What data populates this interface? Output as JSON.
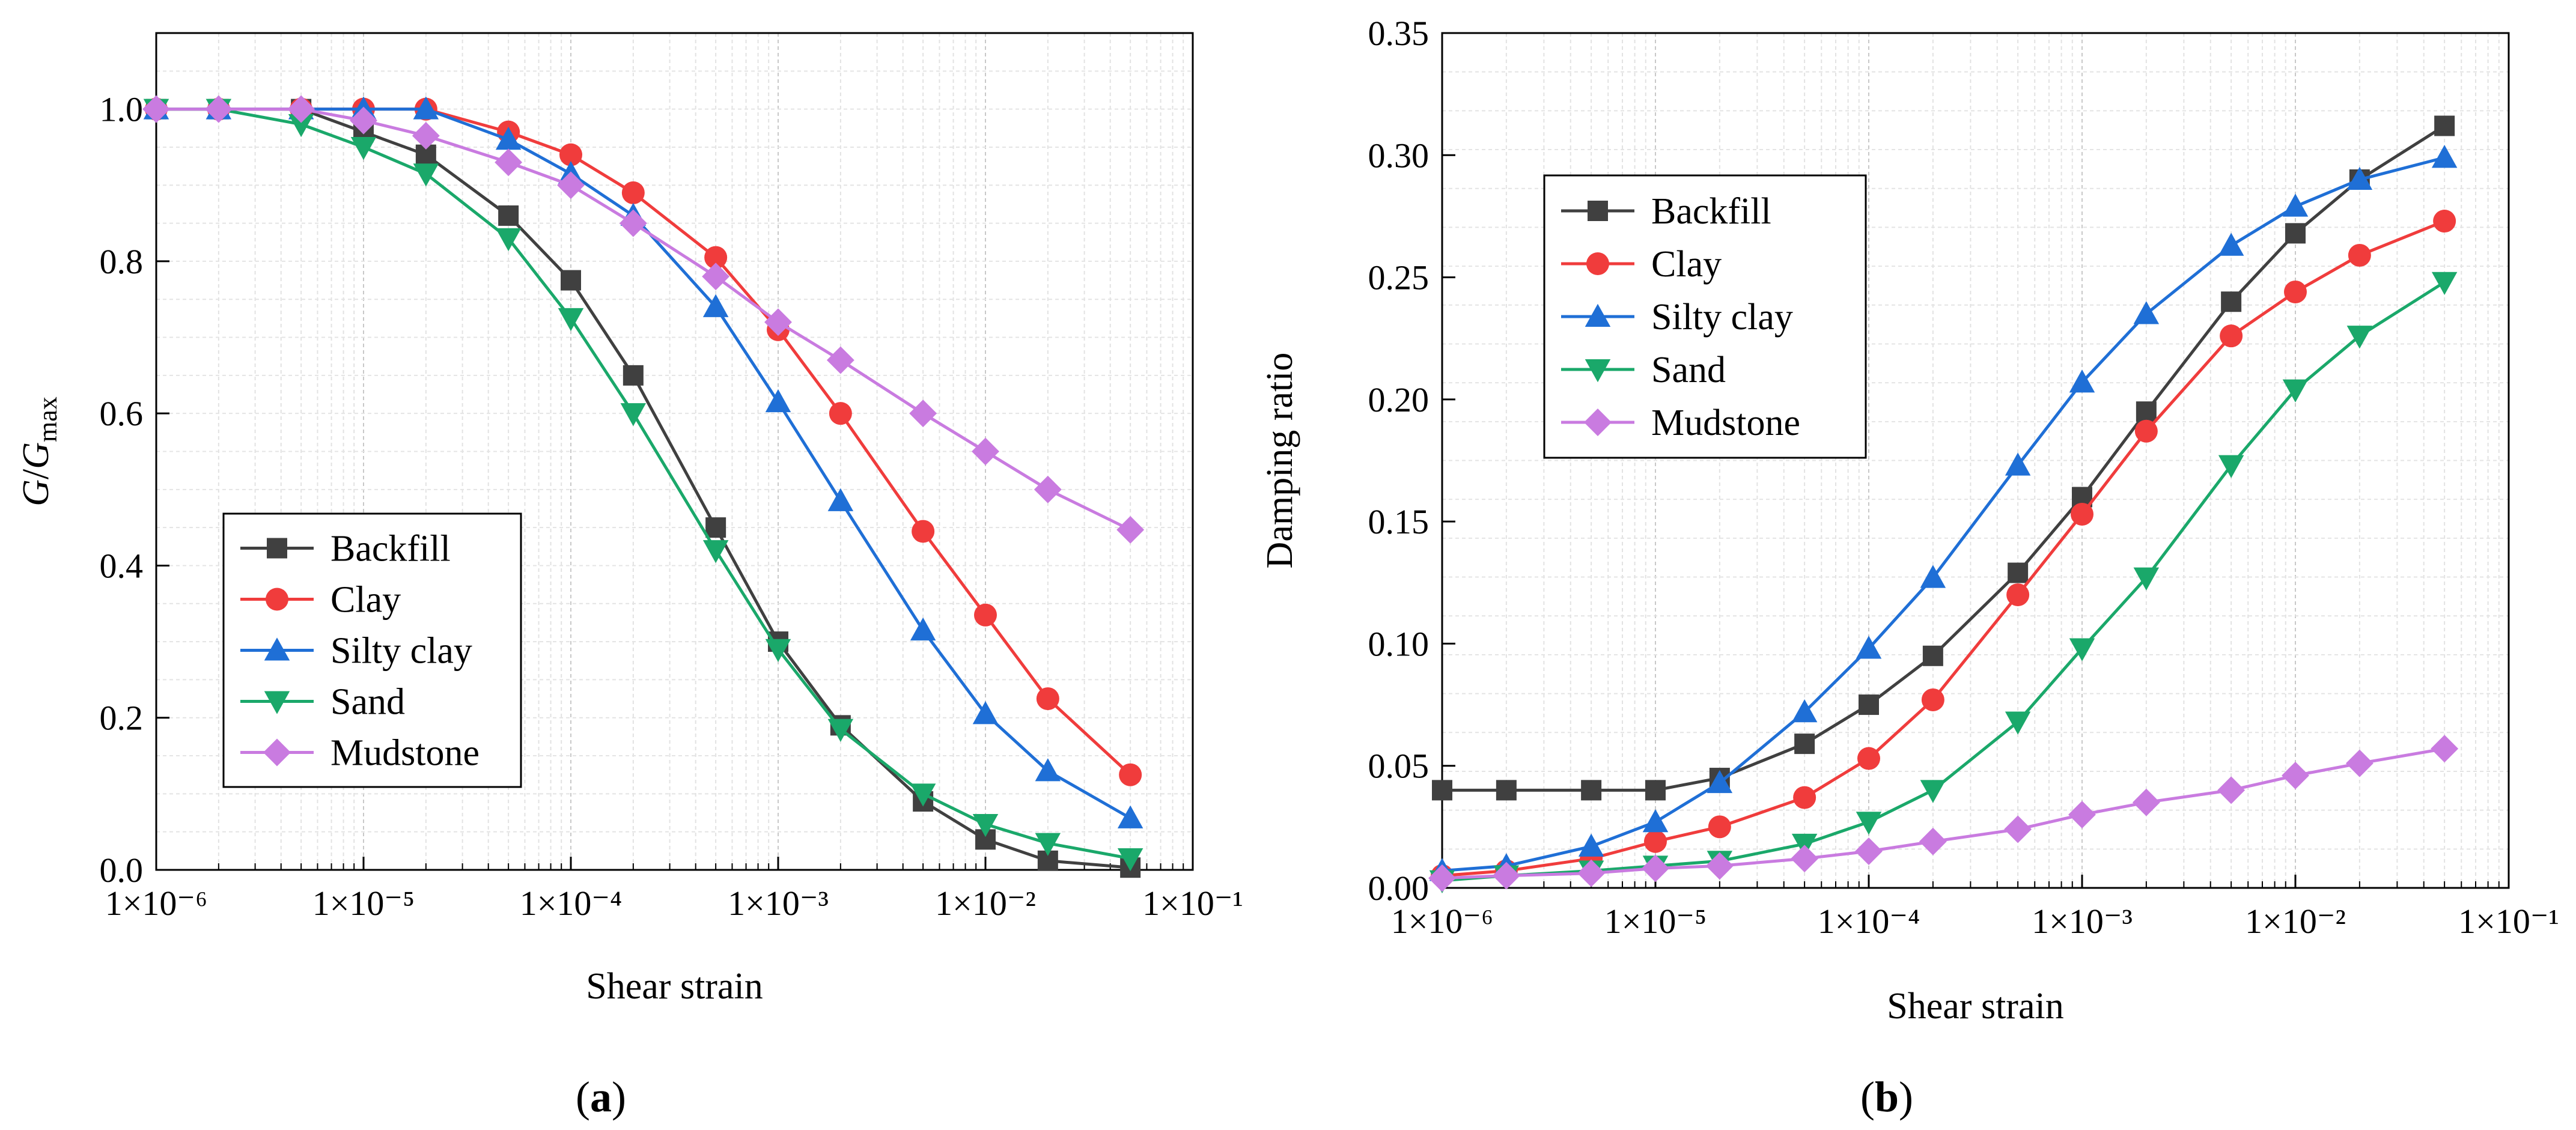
{
  "chart_data": [
    {
      "panel": "a",
      "panel_label": "a",
      "type": "line",
      "x_scale": "log",
      "xlabel": "Shear strain",
      "ylabel": {
        "main": "G",
        "sep": "/",
        "var": "G",
        "sub": "max"
      },
      "xlim": [
        1e-06,
        0.1
      ],
      "ylim": [
        0,
        1.1
      ],
      "x_ticks": [
        1e-06,
        1e-05,
        0.0001,
        0.001,
        0.01,
        0.1
      ],
      "x_tick_labels": [
        "1×10⁻⁶",
        "1×10⁻⁵",
        "1×10⁻⁴",
        "1×10⁻³",
        "1×10⁻²",
        "1×10⁻¹"
      ],
      "y_ticks": [
        0,
        0.2,
        0.4,
        0.6,
        0.8,
        1.0
      ],
      "y_tick_labels": [
        "0.0",
        "0.2",
        "0.4",
        "0.6",
        "0.8",
        "1.0"
      ],
      "grid": true,
      "legend_position": "bottom-left",
      "x": [
        1e-06,
        2e-06,
        5e-06,
        1e-05,
        2e-05,
        5e-05,
        0.0001,
        0.0002,
        0.0005,
        0.001,
        0.002,
        0.005,
        0.01,
        0.02,
        0.05
      ],
      "series": [
        {
          "name": "Backfill",
          "color": "#404040",
          "marker": "square",
          "values": [
            1.0,
            1.0,
            1.0,
            0.97,
            0.94,
            0.86,
            0.775,
            0.65,
            0.45,
            0.3,
            0.19,
            0.09,
            0.04,
            0.012,
            0.003
          ]
        },
        {
          "name": "Clay",
          "color": "#f03c3c",
          "marker": "circle",
          "values": [
            1.0,
            1.0,
            1.0,
            1.0,
            1.0,
            0.97,
            0.94,
            0.89,
            0.805,
            0.71,
            0.6,
            0.445,
            0.335,
            0.225,
            0.125
          ]
        },
        {
          "name": "Silty clay",
          "color": "#1f6fd6",
          "marker": "triangle-up",
          "values": [
            1.0,
            1.0,
            1.0,
            1.0,
            1.0,
            0.96,
            0.915,
            0.86,
            0.74,
            0.615,
            0.485,
            0.315,
            0.205,
            0.13,
            0.068
          ]
        },
        {
          "name": "Sand",
          "color": "#1aa86a",
          "marker": "triangle-down",
          "values": [
            1.0,
            1.0,
            0.98,
            0.95,
            0.915,
            0.83,
            0.725,
            0.6,
            0.42,
            0.29,
            0.185,
            0.1,
            0.06,
            0.035,
            0.015
          ]
        },
        {
          "name": "Mudstone",
          "color": "#c97be0",
          "marker": "diamond",
          "values": [
            1.0,
            1.0,
            1.0,
            0.985,
            0.965,
            0.93,
            0.9,
            0.85,
            0.78,
            0.72,
            0.67,
            0.6,
            0.55,
            0.5,
            0.447
          ]
        }
      ]
    },
    {
      "panel": "b",
      "panel_label": "b",
      "type": "line",
      "x_scale": "log",
      "xlabel": "Shear strain",
      "ylabel": "Damping ratio",
      "xlim": [
        1e-06,
        0.1
      ],
      "ylim": [
        0,
        0.35
      ],
      "x_ticks": [
        1e-06,
        1e-05,
        0.0001,
        0.001,
        0.01,
        0.1
      ],
      "x_tick_labels": [
        "1×10⁻⁶",
        "1×10⁻⁵",
        "1×10⁻⁴",
        "1×10⁻³",
        "1×10⁻²",
        "1×10⁻¹"
      ],
      "y_ticks": [
        0,
        0.05,
        0.1,
        0.15,
        0.2,
        0.25,
        0.3,
        0.35
      ],
      "y_tick_labels": [
        "0.00",
        "0.05",
        "0.10",
        "0.15",
        "0.20",
        "0.25",
        "0.30",
        "0.35"
      ],
      "grid": true,
      "legend_position": "top-left",
      "x": [
        1e-06,
        2e-06,
        5e-06,
        1e-05,
        2e-05,
        5e-05,
        0.0001,
        0.0002,
        0.0005,
        0.001,
        0.002,
        0.005,
        0.01,
        0.02,
        0.05
      ],
      "series": [
        {
          "name": "Backfill",
          "color": "#404040",
          "marker": "square",
          "values": [
            0.04,
            0.04,
            0.04,
            0.04,
            0.045,
            0.059,
            0.075,
            0.095,
            0.129,
            0.16,
            0.195,
            0.24,
            0.268,
            0.29,
            0.312
          ]
        },
        {
          "name": "Clay",
          "color": "#f03c3c",
          "marker": "circle",
          "values": [
            0.005,
            0.007,
            0.012,
            0.019,
            0.025,
            0.037,
            0.053,
            0.077,
            0.12,
            0.153,
            0.187,
            0.226,
            0.244,
            0.259,
            0.273
          ]
        },
        {
          "name": "Silty clay",
          "color": "#1f6fd6",
          "marker": "triangle-up",
          "values": [
            0.007,
            0.009,
            0.017,
            0.027,
            0.043,
            0.072,
            0.098,
            0.127,
            0.173,
            0.207,
            0.235,
            0.263,
            0.279,
            0.29,
            0.299
          ]
        },
        {
          "name": "Sand",
          "color": "#1aa86a",
          "marker": "triangle-down",
          "values": [
            0.003,
            0.005,
            0.007,
            0.009,
            0.011,
            0.018,
            0.027,
            0.04,
            0.068,
            0.098,
            0.127,
            0.173,
            0.204,
            0.226,
            0.248
          ]
        },
        {
          "name": "Mudstone",
          "color": "#c97be0",
          "marker": "diamond",
          "values": [
            0.004,
            0.005,
            0.006,
            0.008,
            0.009,
            0.012,
            0.015,
            0.019,
            0.024,
            0.03,
            0.035,
            0.04,
            0.046,
            0.051,
            0.057
          ]
        }
      ]
    }
  ]
}
